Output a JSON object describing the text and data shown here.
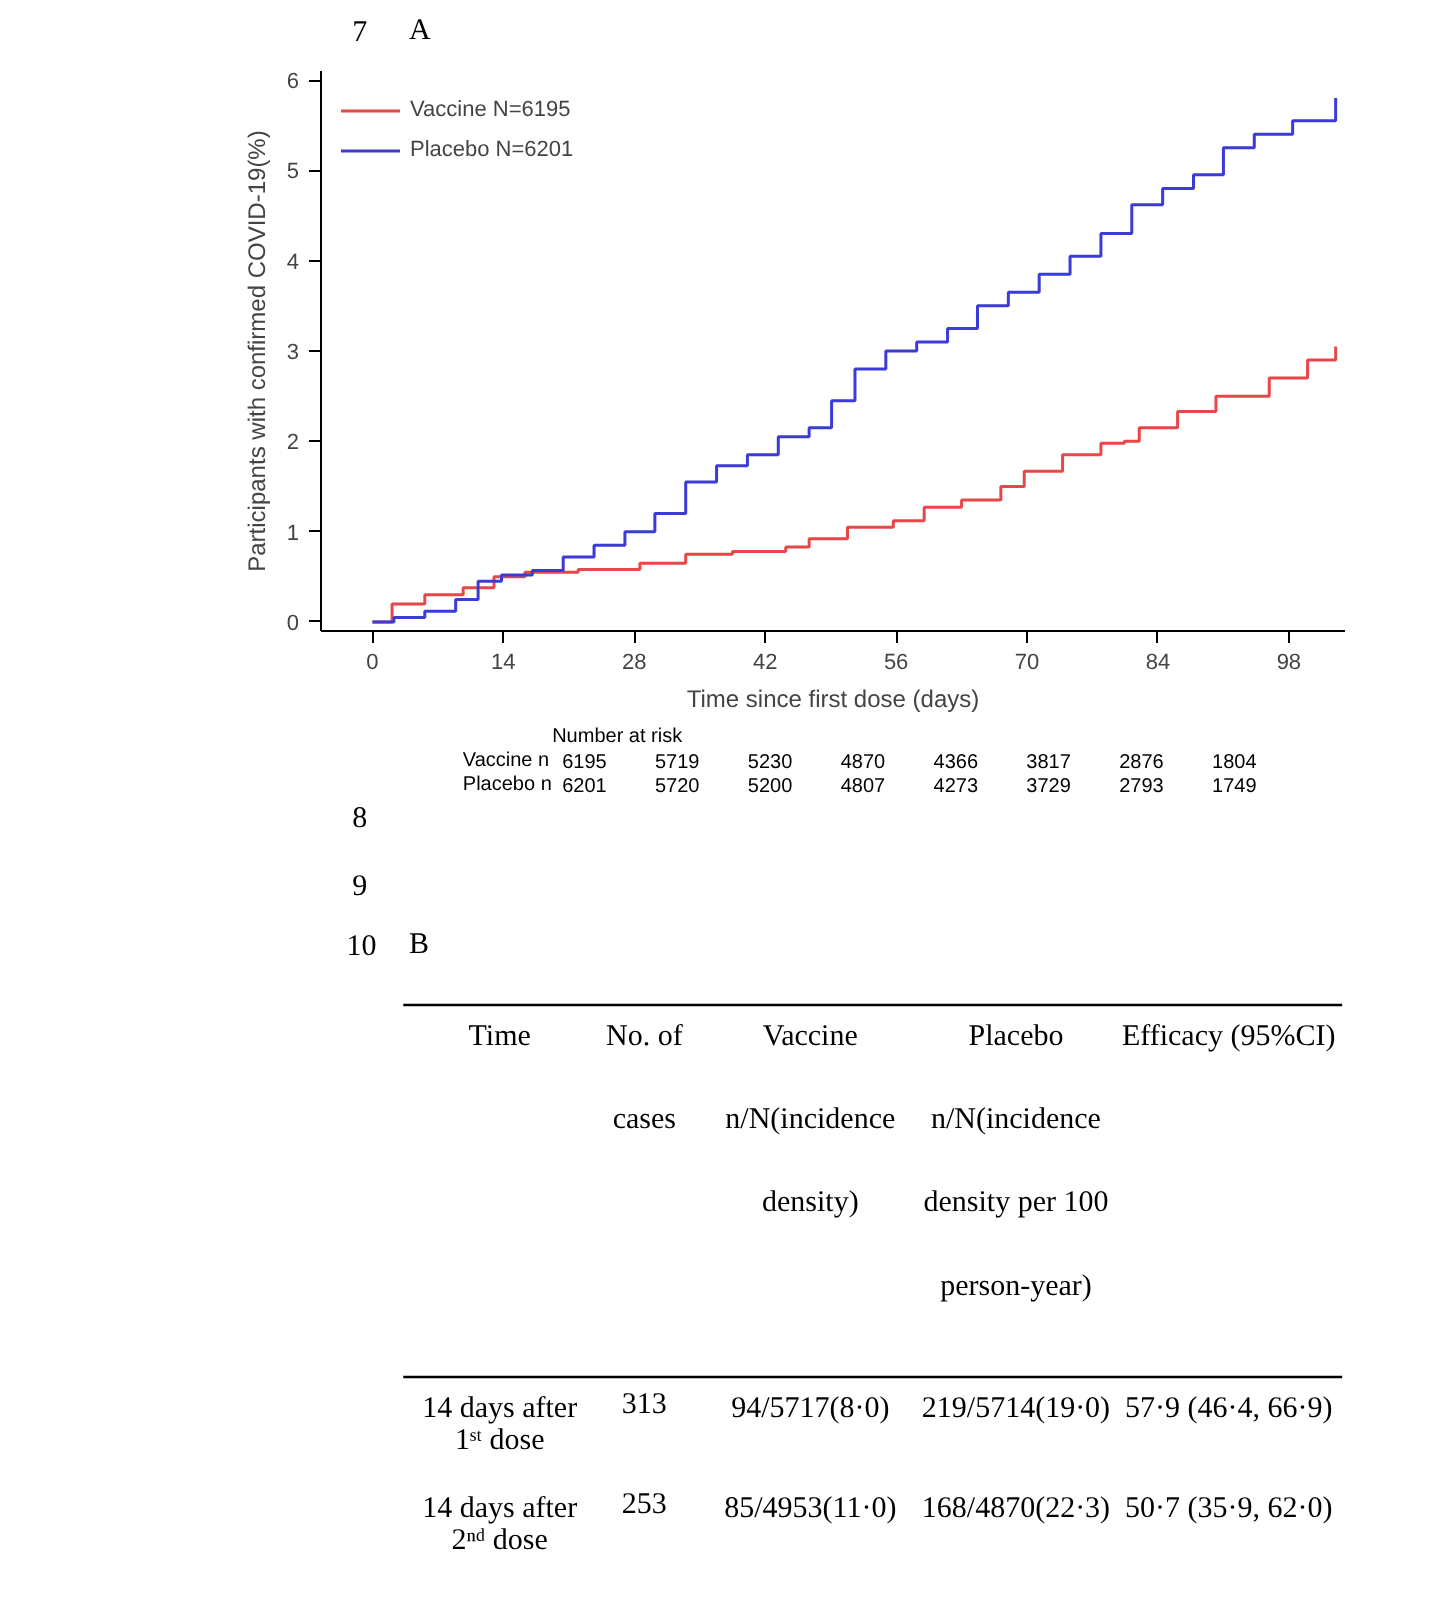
{
  "chart_data": [
    {
      "type": "step",
      "title": "A",
      "xlabel": "Time since first dose (days)",
      "ylabel": "Participants with confirmed COVID-19(%)",
      "xlim": [
        -5.5,
        104
      ],
      "ylim": [
        -0.1,
        6.1
      ],
      "xticks": [
        0,
        14,
        28,
        42,
        56,
        70,
        84,
        98
      ],
      "yticks": [
        0,
        1,
        2,
        3,
        4,
        5,
        6
      ],
      "grid": false,
      "legend": "top left",
      "line_style": "solid",
      "series": [
        {
          "name": "Vaccine N=6195",
          "color": "#e8474a",
          "x": [
            0,
            2.1,
            5.6,
            9.7,
            13,
            16.3,
            22,
            28.6,
            33.5,
            38.5,
            44.2,
            46.7,
            50.8,
            55.7,
            59,
            63,
            67.2,
            69.7,
            73.8,
            77.9,
            80.4,
            82,
            86.1,
            90.2,
            94.3,
            95.9,
            100,
            103
          ],
          "values": [
            0,
            0.2,
            0.3,
            0.38,
            0.5,
            0.55,
            0.58,
            0.65,
            0.75,
            0.78,
            0.83,
            0.92,
            1.05,
            1.12,
            1.27,
            1.35,
            1.5,
            1.67,
            1.85,
            1.98,
            2.0,
            2.15,
            2.33,
            2.5,
            2.5,
            2.7,
            2.9,
            3.05
          ]
        },
        {
          "name": "Placebo N=6201",
          "color": "#3b3bd6",
          "x": [
            0,
            2.3,
            5.6,
            8.9,
            11.3,
            13.8,
            17.1,
            20.4,
            23.7,
            27,
            30.2,
            33.5,
            36.8,
            40.1,
            43.4,
            46.7,
            49.1,
            51.6,
            54.9,
            58.2,
            61.5,
            64.7,
            68,
            71.3,
            74.6,
            77.9,
            81.2,
            84.5,
            87.8,
            91,
            94.3,
            98.4,
            103
          ],
          "values": [
            0,
            0.05,
            0.12,
            0.25,
            0.45,
            0.52,
            0.57,
            0.72,
            0.85,
            1.0,
            1.2,
            1.55,
            1.73,
            1.85,
            2.05,
            2.15,
            2.45,
            2.8,
            3.0,
            3.1,
            3.25,
            3.5,
            3.65,
            3.85,
            4.05,
            4.3,
            4.62,
            4.8,
            4.95,
            5.25,
            5.4,
            5.55,
            5.8
          ]
        }
      ],
      "annotations": [
        "7",
        "8",
        "9",
        "Number at risk",
        "Vaccine n",
        "6195",
        "5719",
        "5230",
        "4870",
        "4366",
        "3817",
        "2876",
        "1804",
        "Placebo n",
        "6201",
        "5720",
        "5200",
        "4807",
        "4273",
        "3729",
        "2793",
        "1749"
      ]
    },
    {
      "type": "other",
      "title": "B",
      "annotations": [
        "10",
        "Time",
        "No. of cases",
        "Vaccine n/N(incidence density)",
        "Placebo n/N(incidence density per 100 person-year)",
        "Efficacy (95%CI)",
        "14 days after 1ˢᵗ dose",
        "313",
        "94/5717(8·0)",
        "219/5714(19·0)",
        "57·9 (46·4, 66·9)",
        "14 days after 2ⁿᵈ dose",
        "253",
        "85/4953(11·0)",
        "168/4870(22·3)",
        "50·7 (35·9, 62·0)"
      ]
    }
  ]
}
